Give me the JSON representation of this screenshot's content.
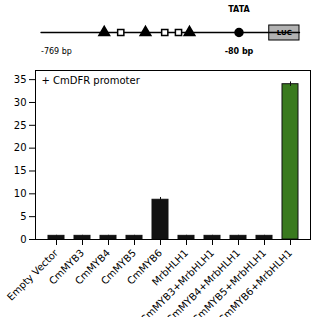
{
  "chart_data": {
    "type": "bar",
    "categories": [
      "Empty Vector",
      "CmMYB3",
      "CmMYB4",
      "CmMYB5",
      "CmMYB6",
      "MrbHLH1",
      "CmMYB3+MrbHLH1",
      "CmMYB4+MrbHLH1",
      "CmMYB5+MrbHLH1",
      "CmMYB6+MrbHLH1"
    ],
    "values": [
      0.8,
      0.8,
      0.8,
      0.8,
      8.7,
      0.8,
      0.8,
      0.8,
      0.8,
      34.0
    ],
    "errors": [
      0.12,
      0.12,
      0.12,
      0.12,
      0.5,
      0.12,
      0.12,
      0.12,
      0.12,
      0.5
    ],
    "colors": [
      "#111111",
      "#111111",
      "#111111",
      "#111111",
      "#111111",
      "#111111",
      "#111111",
      "#111111",
      "#111111",
      "#3a7a1e"
    ],
    "ylim": [
      0,
      37
    ],
    "yticks": [
      0,
      5,
      10,
      15,
      20,
      25,
      30,
      35
    ],
    "annotations": [
      "+ CmDFR promoter",
      "-769 bp",
      "TATA",
      "-80 bp",
      "LUC"
    ]
  }
}
